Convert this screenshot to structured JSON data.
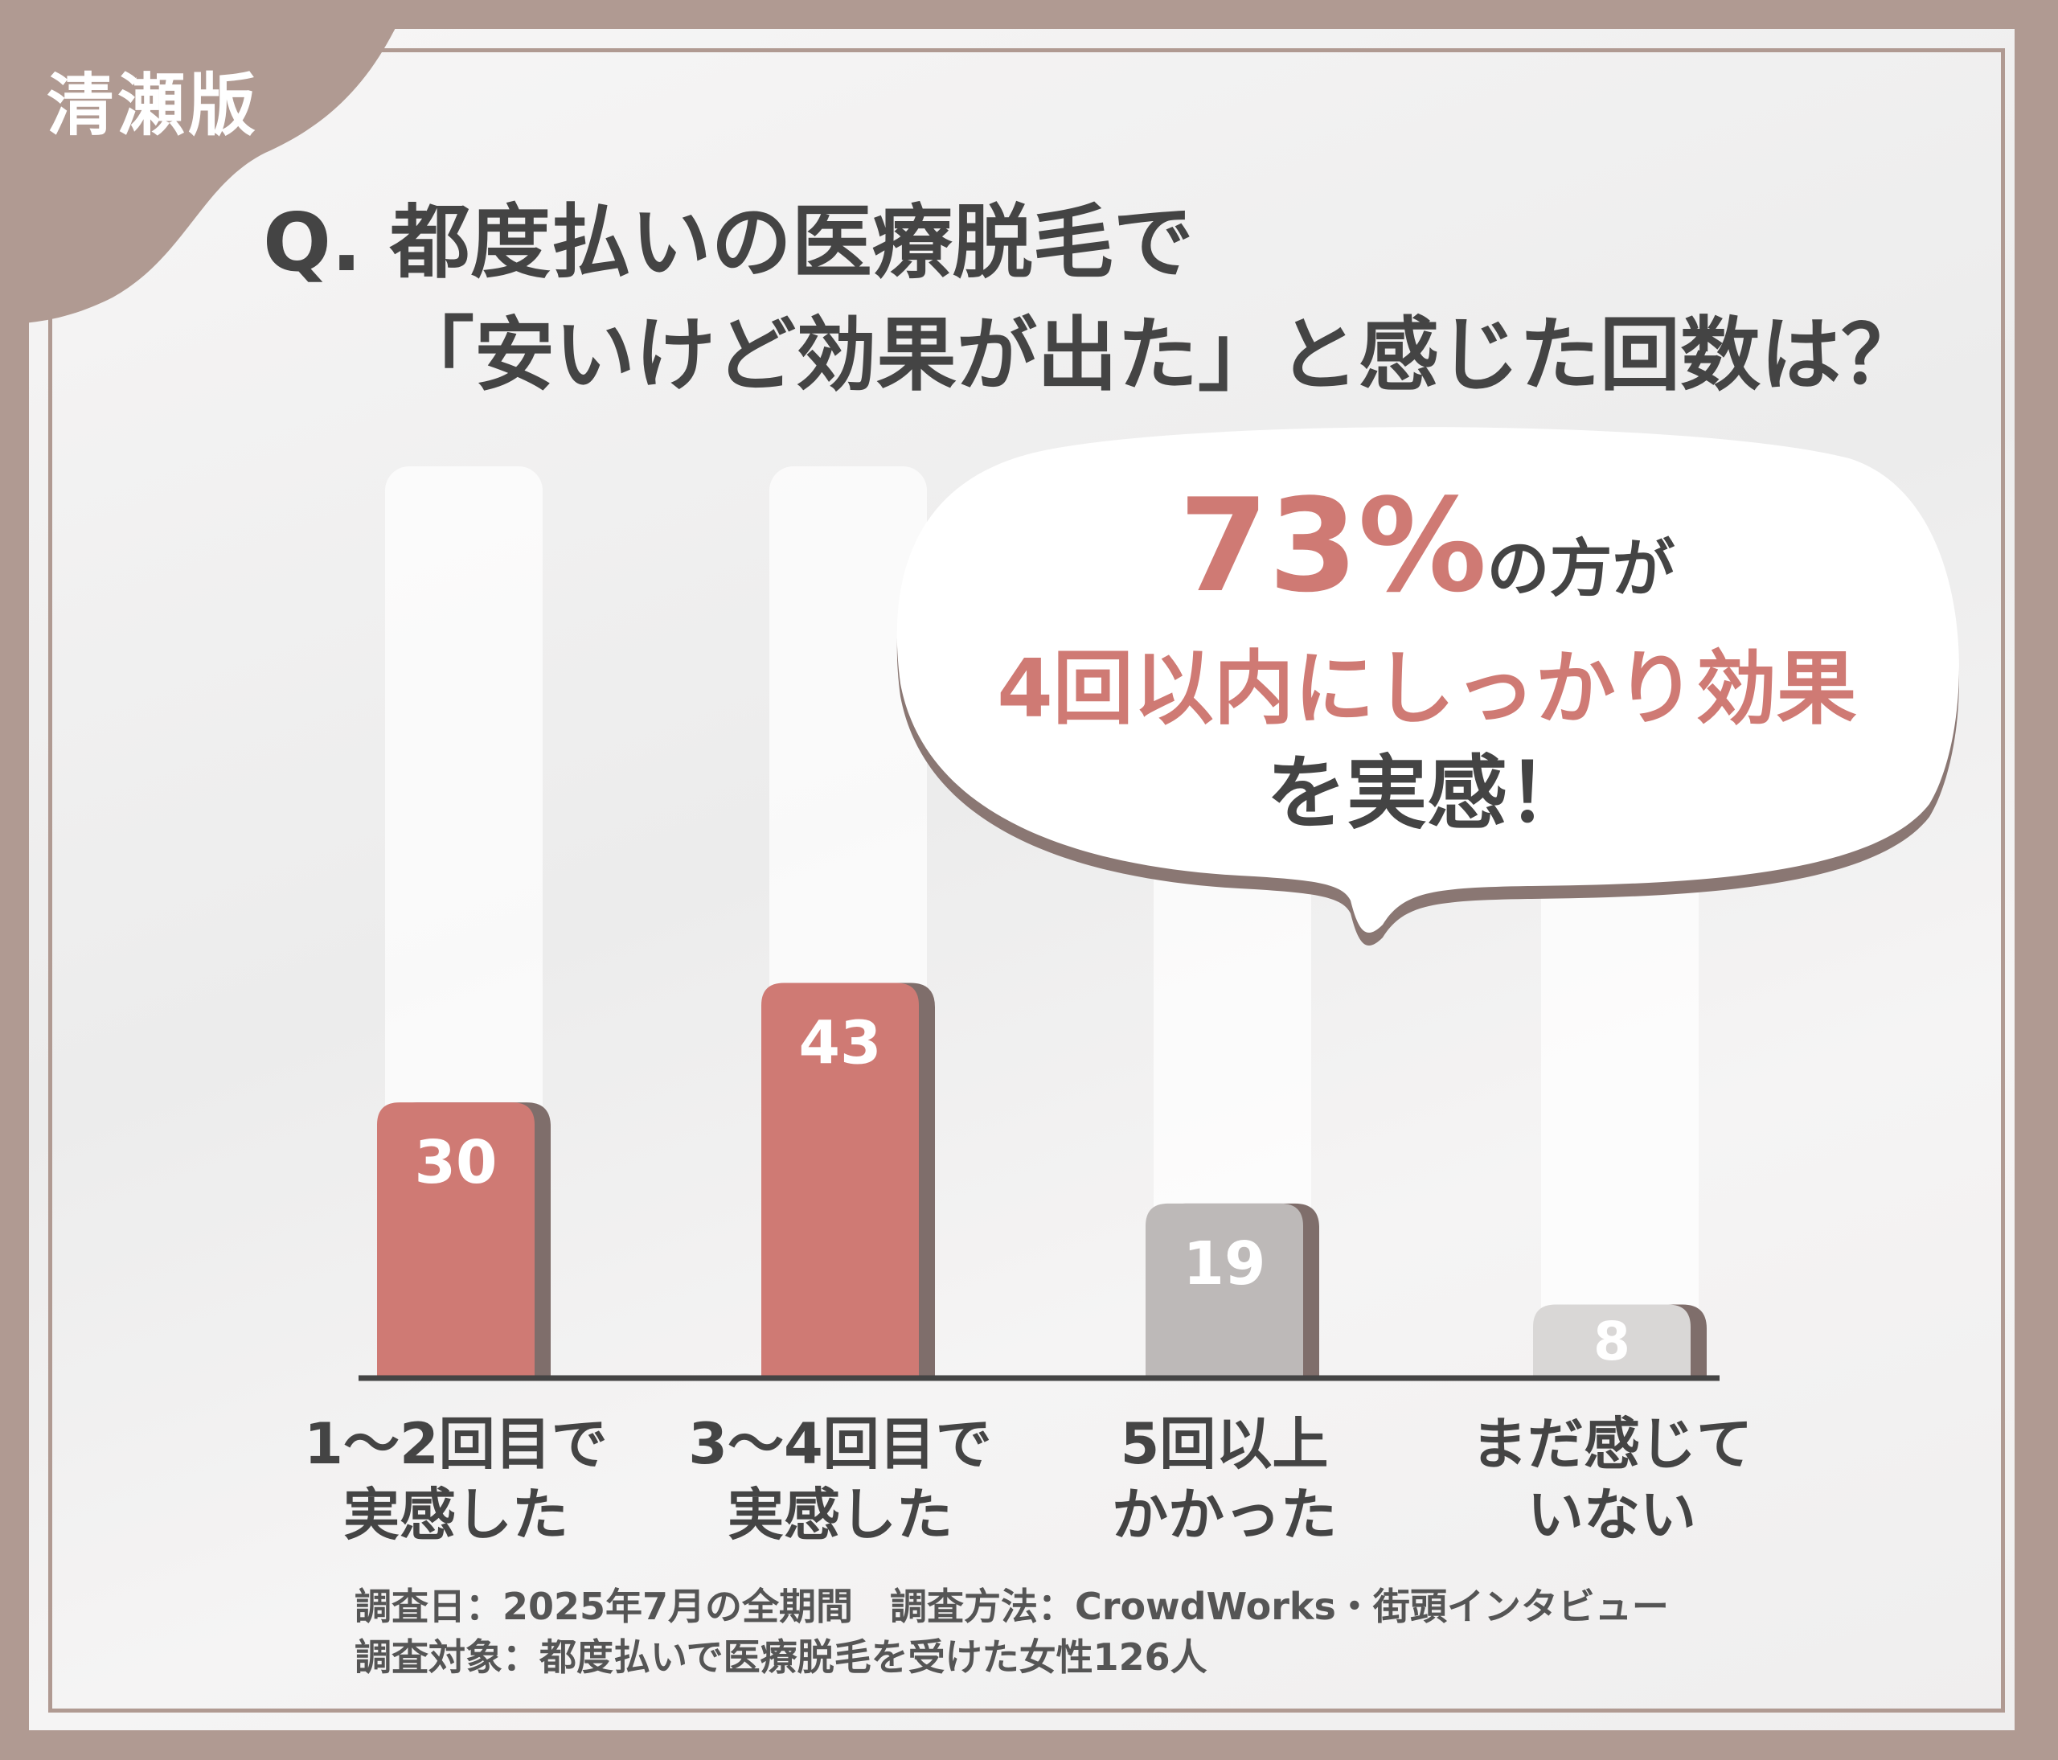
{
  "edition_tab": "清瀬版",
  "title": {
    "line1": "Q. 都度払いの医療脱毛で",
    "line2": "「安いけど効果が出た」と感じた回数は？"
  },
  "callout": {
    "percent": "73%",
    "suffix": "の方が",
    "line2": "4回以内にしっかり効果",
    "line3": "を実感！"
  },
  "chart_data": {
    "type": "bar",
    "categories": [
      [
        "1〜2回目で",
        "実感した"
      ],
      [
        "3〜4回目で",
        "実感した"
      ],
      [
        "5回以上",
        "かかった"
      ],
      [
        "まだ感じて",
        "いない"
      ]
    ],
    "values": [
      30,
      43,
      19,
      8
    ],
    "bar_colors": [
      "#cf7a74",
      "#cf7a74",
      "#bdb9b8",
      "#d9d7d6"
    ],
    "data_labels": [
      "30",
      "43",
      "19",
      "8"
    ],
    "grid": false,
    "ylim": [
      0,
      60
    ]
  },
  "footer": {
    "line1": "調査日：2025年7月の全期間　調査方法：CrowdWorks・街頭インタビュー",
    "line2": "調査対象：都度払いで医療脱毛を受けた女性126人"
  },
  "colors": {
    "frame": "#b09a92",
    "accent": "#cf7a74",
    "text": "#444444"
  }
}
